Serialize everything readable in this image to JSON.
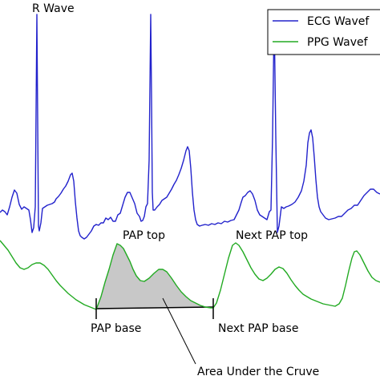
{
  "chart_data": {
    "type": "line",
    "title": "",
    "xlabel": "",
    "ylabel": "",
    "grid": false,
    "legend": {
      "placement": "top-right",
      "entries": [
        {
          "name": "ECG Wavef",
          "color": "#2222cc"
        },
        {
          "name": "PPG Wavef",
          "color": "#22aa22"
        }
      ]
    },
    "series": [
      {
        "name": "ECG Wavef",
        "color": "#2222cc"
      },
      {
        "name": "PPG Wavef",
        "color": "#22aa22"
      }
    ],
    "shaded_area_color": "#c8c8c8",
    "annotations": {
      "r_wave": "R Wave",
      "pap_top": "PAP top",
      "next_pap_top": "Next PAP top",
      "pap_base": "PAP base",
      "next_pap_base": "Next PAP base",
      "area": "Area Under the Cruve"
    }
  }
}
